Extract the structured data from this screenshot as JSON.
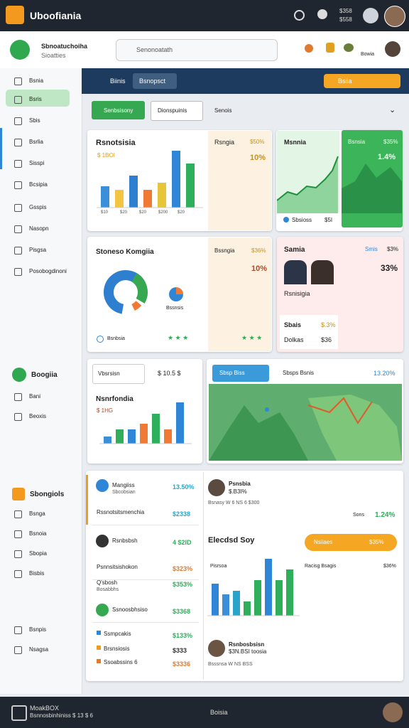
{
  "topbar": {
    "brand": "Uboofiania",
    "stat1": "$358",
    "stat2": "$558"
  },
  "header": {
    "title": "Sbnoatuchoiha",
    "subtitle": "Sioatties",
    "search": "Senonoatath",
    "badge": "Bowia"
  },
  "sidebar": {
    "items": [
      "Bsnia",
      "Bsris",
      "Sbis",
      "Bsrlia",
      "Sisspi",
      "Bcsipia",
      "Gsspis",
      "Nasopn",
      "Pisgsa",
      "Posobogdinoni"
    ],
    "section2": "Boogiia",
    "items2": [
      "Bani",
      "Beoxis"
    ],
    "section3": "Sbongiols",
    "items3": [
      "Bsnga",
      "Bsnoia",
      "Sbopia",
      "Bisbis"
    ],
    "items4": [
      "Bsnpis",
      "Nsagsa"
    ]
  },
  "toolbar": {
    "title": "Biinis",
    "button": "Bsnopsct",
    "action": "Bsiia"
  },
  "filters": [
    "Senbsisony",
    "Dionspuinis",
    "Senois"
  ],
  "card1": {
    "title": "Rsnotsisia",
    "value": "$ 1BOI",
    "side_title": "Rsngia",
    "side_value": "$50%",
    "side_big": "10%",
    "bars": [
      30,
      25,
      45,
      25,
      35,
      80,
      62
    ],
    "colors": [
      "#3b8fd9",
      "#f4c542",
      "#2f7fd0",
      "#f07a35",
      "#e7c53a",
      "#2f86d6",
      "#2fae5b"
    ],
    "labels": [
      "$10",
      "$20",
      "$20",
      "$200",
      "$20"
    ]
  },
  "card2": {
    "title": "Msnnia",
    "footer": "Sbsioss",
    "footer_value": "$5I",
    "side_title": "Bsnsia",
    "side_value": "$35%",
    "side_big": "1.4%"
  },
  "card3": {
    "title": "Stoneso Komgiia",
    "legend": "Bsnbsia",
    "mini": "Bssnsis",
    "side_title": "Bssngia",
    "side_value": "$36%",
    "side_big": "10%"
  },
  "card4": {
    "title": "Samia",
    "tag": "Smis",
    "tag_value": "$3%",
    "big": "33%",
    "caption": "Rsnisigia",
    "row1": "Sbais",
    "row1_value": "$.3%",
    "row2": "Dolkas",
    "row2_value": "$36"
  },
  "card5": {
    "select": "Vbsrsisn",
    "value": "$ 10.5 $",
    "title": "Nsnrfondia",
    "sub": "$ 1HG",
    "bars": [
      10,
      20,
      20,
      28,
      42,
      20,
      62
    ],
    "colors": [
      "#3b8fd9",
      "#2fae5b",
      "#2f86d6",
      "#f07a35",
      "#2fae5b",
      "#f07a35",
      "#2f86d6"
    ]
  },
  "map": {
    "button": "Sbsp Biss",
    "search": "Sbsps Bsnis",
    "value": "13.20%"
  },
  "list": [
    {
      "name": "Mangiiss",
      "sub": "Sbcobsian",
      "value": "13.50%"
    },
    {
      "name": "Rssnotsitsmenchia",
      "value": "$2338"
    },
    {
      "name": "Rsnbsbsh",
      "value": "4 $2ID"
    },
    {
      "name": "Psnnsitsishokon",
      "value": "$323%"
    },
    {
      "name": "Q'sbosh",
      "sub": "Bosabbhs",
      "value": "$353%"
    },
    {
      "name": "Ssnoosbhsiso",
      "value": "$3368"
    },
    {
      "name": "Ssmpcakis",
      "value": "$133%"
    },
    {
      "name": "Brsnsiosis",
      "value": "$333"
    },
    {
      "name": "Ssoabssins 6",
      "value": "$3336"
    }
  ],
  "panel": {
    "name": "Psnsbia",
    "value": "$.B3I%",
    "date": "Bsnasy W 6 NS 6 $300",
    "label": "Sons",
    "label_value": "1.24%",
    "title": "Elecdsd Soy",
    "button": "Nsiiaes",
    "button_value": "$35%",
    "axis": "Pisrsoa",
    "axis2": "Racisg Bsagis",
    "axis2_value": "$36%",
    "bars": [
      45,
      30,
      35,
      20,
      50,
      85,
      50,
      65
    ],
    "colors": [
      "#2f86d6",
      "#3b8fd9",
      "#28a3c9",
      "#2fae5b",
      "#2fae5b",
      "#2f86d6",
      "#2fae5b",
      "#2fae5b"
    ],
    "person": "Rsnbosbsisn",
    "person_sub": "$3N.BSI toosia",
    "person_date": "Bsssnsa W NS BSS"
  },
  "footer": {
    "brand": "MoakBOX",
    "sub": "Bsnnosbinhiniss $ 13 $ 6",
    "center": "Boisia"
  }
}
